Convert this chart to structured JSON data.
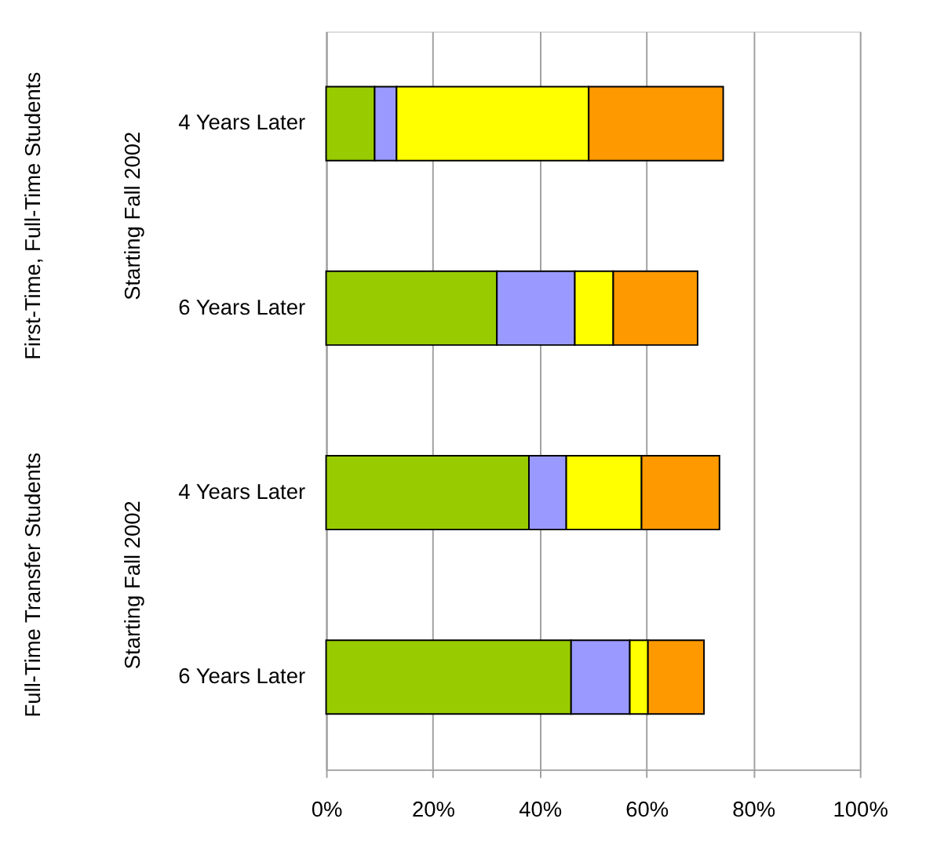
{
  "chart_data": {
    "type": "bar",
    "orientation": "horizontal",
    "stacked": true,
    "categories": [
      "4 Years Later",
      "6 Years Later",
      "4 Years Later",
      "6 Years Later"
    ],
    "series": [
      {
        "color": "#99cc00",
        "values": [
          9.1,
          32.0,
          38.0,
          45.9
        ]
      },
      {
        "color": "#9999ff",
        "values": [
          4.1,
          14.6,
          7.0,
          11.0
        ]
      },
      {
        "color": "#ffff00",
        "values": [
          36.0,
          7.2,
          14.1,
          3.4
        ]
      },
      {
        "color": "#ff9900",
        "values": [
          25.2,
          15.8,
          14.6,
          10.5
        ]
      }
    ],
    "xlim": [
      0,
      100
    ],
    "xticks": [
      {
        "value": 0,
        "label": "0%"
      },
      {
        "value": 20,
        "label": "20%"
      },
      {
        "value": 40,
        "label": "40%"
      },
      {
        "value": 60,
        "label": "60%"
      },
      {
        "value": 80,
        "label": "80%"
      },
      {
        "value": 100,
        "label": "100%"
      }
    ],
    "grid": "x",
    "legend": false,
    "annotations": [
      "First-Time, Full-Time Students",
      "Starting Fall 2002",
      "Full-Time Transfer Students",
      "Starting Fall 2002"
    ]
  }
}
